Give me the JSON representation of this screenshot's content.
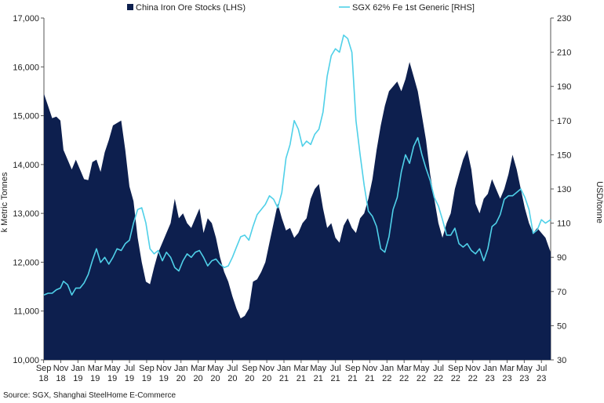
{
  "chart_data": {
    "type": "area",
    "legend": {
      "placement": "top",
      "items": [
        {
          "label": "China Iron Ore Stocks (LHS)",
          "color": "#0d1f4e",
          "kind": "area"
        },
        {
          "label": "SGX 62% Fe 1st Generic [RHS]",
          "color": "#4fd0e8",
          "kind": "line"
        }
      ]
    },
    "y_left": {
      "label": "k Metric Tonnes",
      "range": [
        10000,
        17000
      ],
      "ticks": [
        "10,000",
        "11,000",
        "12,000",
        "13,000",
        "14,000",
        "15,000",
        "16,000",
        "17,000"
      ]
    },
    "y_right": {
      "label": "USD/tonne",
      "range": [
        30,
        230
      ],
      "ticks": [
        "30",
        "50",
        "70",
        "90",
        "110",
        "130",
        "150",
        "170",
        "190",
        "210",
        "230"
      ]
    },
    "x": {
      "range": [
        2018.7,
        2023.62
      ],
      "ticks": [
        {
          "m": "Sep",
          "y": "18"
        },
        {
          "m": "Nov",
          "y": "18"
        },
        {
          "m": "Jan",
          "y": "19"
        },
        {
          "m": "Mar",
          "y": "19"
        },
        {
          "m": "May",
          "y": "19"
        },
        {
          "m": "Jul",
          "y": "19"
        },
        {
          "m": "Sep",
          "y": "19"
        },
        {
          "m": "Nov",
          "y": "19"
        },
        {
          "m": "Jan",
          "y": "20"
        },
        {
          "m": "Mar",
          "y": "20"
        },
        {
          "m": "May",
          "y": "20"
        },
        {
          "m": "Jul",
          "y": "20"
        },
        {
          "m": "Sep",
          "y": "20"
        },
        {
          "m": "Nov",
          "y": "20"
        },
        {
          "m": "Jan",
          "y": "21"
        },
        {
          "m": "Mar",
          "y": "21"
        },
        {
          "m": "May",
          "y": "21"
        },
        {
          "m": "Jul",
          "y": "21"
        },
        {
          "m": "Sep",
          "y": "21"
        },
        {
          "m": "Nov",
          "y": "21"
        },
        {
          "m": "Jan",
          "y": "22"
        },
        {
          "m": "Mar",
          "y": "22"
        },
        {
          "m": "May",
          "y": "22"
        },
        {
          "m": "Jul",
          "y": "22"
        },
        {
          "m": "Sep",
          "y": "22"
        },
        {
          "m": "Nov",
          "y": "22"
        },
        {
          "m": "Jan",
          "y": "23"
        },
        {
          "m": "Mar",
          "y": "23"
        },
        {
          "m": "May",
          "y": "23"
        },
        {
          "m": "Jul",
          "y": "23"
        }
      ]
    },
    "series": [
      {
        "name": "China Iron Ore Stocks (LHS)",
        "axis": "left",
        "points": [
          [
            2018.7,
            15450
          ],
          [
            2018.74,
            15200
          ],
          [
            2018.78,
            14950
          ],
          [
            2018.82,
            14980
          ],
          [
            2018.86,
            14900
          ],
          [
            2018.89,
            14300
          ],
          [
            2018.93,
            14100
          ],
          [
            2018.97,
            13900
          ],
          [
            2019.01,
            14100
          ],
          [
            2019.05,
            13900
          ],
          [
            2019.09,
            13700
          ],
          [
            2019.13,
            13680
          ],
          [
            2019.17,
            14050
          ],
          [
            2019.21,
            14100
          ],
          [
            2019.25,
            13850
          ],
          [
            2019.29,
            14250
          ],
          [
            2019.33,
            14500
          ],
          [
            2019.37,
            14800
          ],
          [
            2019.41,
            14850
          ],
          [
            2019.45,
            14900
          ],
          [
            2019.49,
            14300
          ],
          [
            2019.53,
            13550
          ],
          [
            2019.57,
            13250
          ],
          [
            2019.61,
            12500
          ],
          [
            2019.65,
            12000
          ],
          [
            2019.69,
            11600
          ],
          [
            2019.73,
            11550
          ],
          [
            2019.77,
            11900
          ],
          [
            2019.81,
            12200
          ],
          [
            2019.85,
            12400
          ],
          [
            2019.89,
            12600
          ],
          [
            2019.93,
            12800
          ],
          [
            2019.97,
            13300
          ],
          [
            2020.01,
            12900
          ],
          [
            2020.05,
            13000
          ],
          [
            2020.09,
            12800
          ],
          [
            2020.13,
            12700
          ],
          [
            2020.17,
            12900
          ],
          [
            2020.21,
            13100
          ],
          [
            2020.25,
            12600
          ],
          [
            2020.29,
            12900
          ],
          [
            2020.33,
            12800
          ],
          [
            2020.37,
            12500
          ],
          [
            2020.41,
            12100
          ],
          [
            2020.45,
            11800
          ],
          [
            2020.49,
            11600
          ],
          [
            2020.53,
            11300
          ],
          [
            2020.57,
            11050
          ],
          [
            2020.61,
            10850
          ],
          [
            2020.65,
            10900
          ],
          [
            2020.69,
            11050
          ],
          [
            2020.73,
            11600
          ],
          [
            2020.77,
            11650
          ],
          [
            2020.81,
            11800
          ],
          [
            2020.85,
            12000
          ],
          [
            2020.89,
            12400
          ],
          [
            2020.93,
            12800
          ],
          [
            2020.97,
            13200
          ],
          [
            2021.01,
            12900
          ],
          [
            2021.05,
            12650
          ],
          [
            2021.09,
            12700
          ],
          [
            2021.13,
            12500
          ],
          [
            2021.17,
            12600
          ],
          [
            2021.21,
            12800
          ],
          [
            2021.25,
            12900
          ],
          [
            2021.29,
            13300
          ],
          [
            2021.33,
            13500
          ],
          [
            2021.37,
            13600
          ],
          [
            2021.41,
            13100
          ],
          [
            2021.45,
            12700
          ],
          [
            2021.49,
            12800
          ],
          [
            2021.53,
            12500
          ],
          [
            2021.57,
            12400
          ],
          [
            2021.61,
            12750
          ],
          [
            2021.65,
            12900
          ],
          [
            2021.69,
            12700
          ],
          [
            2021.73,
            12600
          ],
          [
            2021.77,
            12900
          ],
          [
            2021.81,
            13000
          ],
          [
            2021.85,
            13300
          ],
          [
            2021.89,
            13700
          ],
          [
            2021.93,
            14300
          ],
          [
            2021.97,
            14800
          ],
          [
            2022.01,
            15200
          ],
          [
            2022.05,
            15500
          ],
          [
            2022.09,
            15600
          ],
          [
            2022.13,
            15700
          ],
          [
            2022.17,
            15500
          ],
          [
            2022.21,
            15750
          ],
          [
            2022.25,
            16100
          ],
          [
            2022.29,
            15800
          ],
          [
            2022.33,
            15500
          ],
          [
            2022.37,
            15000
          ],
          [
            2022.41,
            14500
          ],
          [
            2022.45,
            13800
          ],
          [
            2022.49,
            13300
          ],
          [
            2022.53,
            12800
          ],
          [
            2022.57,
            12500
          ],
          [
            2022.61,
            12800
          ],
          [
            2022.65,
            13000
          ],
          [
            2022.69,
            13500
          ],
          [
            2022.73,
            13800
          ],
          [
            2022.77,
            14100
          ],
          [
            2022.81,
            14300
          ],
          [
            2022.85,
            13900
          ],
          [
            2022.89,
            13200
          ],
          [
            2022.93,
            13000
          ],
          [
            2022.97,
            13300
          ],
          [
            2023.01,
            13400
          ],
          [
            2023.05,
            13700
          ],
          [
            2023.09,
            13500
          ],
          [
            2023.13,
            13300
          ],
          [
            2023.17,
            13500
          ],
          [
            2023.21,
            13800
          ],
          [
            2023.25,
            14200
          ],
          [
            2023.29,
            13900
          ],
          [
            2023.33,
            13500
          ],
          [
            2023.37,
            13100
          ],
          [
            2023.41,
            12800
          ],
          [
            2023.45,
            12600
          ],
          [
            2023.49,
            12700
          ],
          [
            2023.53,
            12600
          ],
          [
            2023.57,
            12500
          ],
          [
            2023.62,
            12200
          ]
        ]
      },
      {
        "name": "SGX 62% Fe 1st Generic [RHS]",
        "axis": "right",
        "points": [
          [
            2018.7,
            68
          ],
          [
            2018.74,
            69
          ],
          [
            2018.78,
            69
          ],
          [
            2018.82,
            71
          ],
          [
            2018.86,
            72
          ],
          [
            2018.89,
            76
          ],
          [
            2018.93,
            74
          ],
          [
            2018.97,
            68
          ],
          [
            2019.01,
            72
          ],
          [
            2019.05,
            72
          ],
          [
            2019.09,
            75
          ],
          [
            2019.13,
            80
          ],
          [
            2019.17,
            88
          ],
          [
            2019.21,
            95
          ],
          [
            2019.25,
            87
          ],
          [
            2019.29,
            90
          ],
          [
            2019.33,
            86
          ],
          [
            2019.37,
            90
          ],
          [
            2019.41,
            95
          ],
          [
            2019.45,
            94
          ],
          [
            2019.49,
            98
          ],
          [
            2019.53,
            100
          ],
          [
            2019.57,
            110
          ],
          [
            2019.61,
            118
          ],
          [
            2019.65,
            119
          ],
          [
            2019.69,
            110
          ],
          [
            2019.73,
            95
          ],
          [
            2019.77,
            92
          ],
          [
            2019.81,
            94
          ],
          [
            2019.85,
            88
          ],
          [
            2019.89,
            93
          ],
          [
            2019.93,
            90
          ],
          [
            2019.97,
            84
          ],
          [
            2020.01,
            82
          ],
          [
            2020.05,
            88
          ],
          [
            2020.09,
            92
          ],
          [
            2020.13,
            90
          ],
          [
            2020.17,
            93
          ],
          [
            2020.21,
            94
          ],
          [
            2020.25,
            90
          ],
          [
            2020.29,
            85
          ],
          [
            2020.33,
            88
          ],
          [
            2020.37,
            89
          ],
          [
            2020.41,
            86
          ],
          [
            2020.45,
            84
          ],
          [
            2020.49,
            85
          ],
          [
            2020.53,
            90
          ],
          [
            2020.57,
            96
          ],
          [
            2020.61,
            102
          ],
          [
            2020.65,
            103
          ],
          [
            2020.69,
            100
          ],
          [
            2020.73,
            108
          ],
          [
            2020.77,
            115
          ],
          [
            2020.81,
            118
          ],
          [
            2020.85,
            121
          ],
          [
            2020.89,
            126
          ],
          [
            2020.93,
            124
          ],
          [
            2020.97,
            119
          ],
          [
            2021.01,
            128
          ],
          [
            2021.05,
            148
          ],
          [
            2021.09,
            156
          ],
          [
            2021.13,
            170
          ],
          [
            2021.17,
            165
          ],
          [
            2021.21,
            155
          ],
          [
            2021.25,
            158
          ],
          [
            2021.29,
            156
          ],
          [
            2021.33,
            162
          ],
          [
            2021.37,
            165
          ],
          [
            2021.41,
            175
          ],
          [
            2021.45,
            196
          ],
          [
            2021.49,
            208
          ],
          [
            2021.53,
            212
          ],
          [
            2021.57,
            210
          ],
          [
            2021.61,
            220
          ],
          [
            2021.65,
            218
          ],
          [
            2021.69,
            210
          ],
          [
            2021.73,
            170
          ],
          [
            2021.77,
            150
          ],
          [
            2021.81,
            132
          ],
          [
            2021.85,
            117
          ],
          [
            2021.89,
            114
          ],
          [
            2021.93,
            108
          ],
          [
            2021.97,
            95
          ],
          [
            2022.01,
            93
          ],
          [
            2022.05,
            102
          ],
          [
            2022.09,
            118
          ],
          [
            2022.13,
            125
          ],
          [
            2022.17,
            140
          ],
          [
            2022.21,
            150
          ],
          [
            2022.25,
            145
          ],
          [
            2022.29,
            155
          ],
          [
            2022.33,
            160
          ],
          [
            2022.37,
            150
          ],
          [
            2022.41,
            142
          ],
          [
            2022.45,
            135
          ],
          [
            2022.49,
            125
          ],
          [
            2022.53,
            120
          ],
          [
            2022.57,
            112
          ],
          [
            2022.61,
            103
          ],
          [
            2022.65,
            103
          ],
          [
            2022.69,
            107
          ],
          [
            2022.73,
            98
          ],
          [
            2022.77,
            96
          ],
          [
            2022.81,
            98
          ],
          [
            2022.85,
            94
          ],
          [
            2022.89,
            92
          ],
          [
            2022.93,
            95
          ],
          [
            2022.97,
            88
          ],
          [
            2023.01,
            95
          ],
          [
            2023.05,
            108
          ],
          [
            2023.09,
            110
          ],
          [
            2023.13,
            115
          ],
          [
            2023.17,
            124
          ],
          [
            2023.21,
            126
          ],
          [
            2023.25,
            126
          ],
          [
            2023.29,
            128
          ],
          [
            2023.33,
            130
          ],
          [
            2023.37,
            125
          ],
          [
            2023.41,
            118
          ],
          [
            2023.45,
            104
          ],
          [
            2023.49,
            106
          ],
          [
            2023.53,
            112
          ],
          [
            2023.57,
            110
          ],
          [
            2023.62,
            112
          ]
        ]
      }
    ]
  },
  "source": "Source: SGX, Shanghai SteelHome E-Commerce"
}
